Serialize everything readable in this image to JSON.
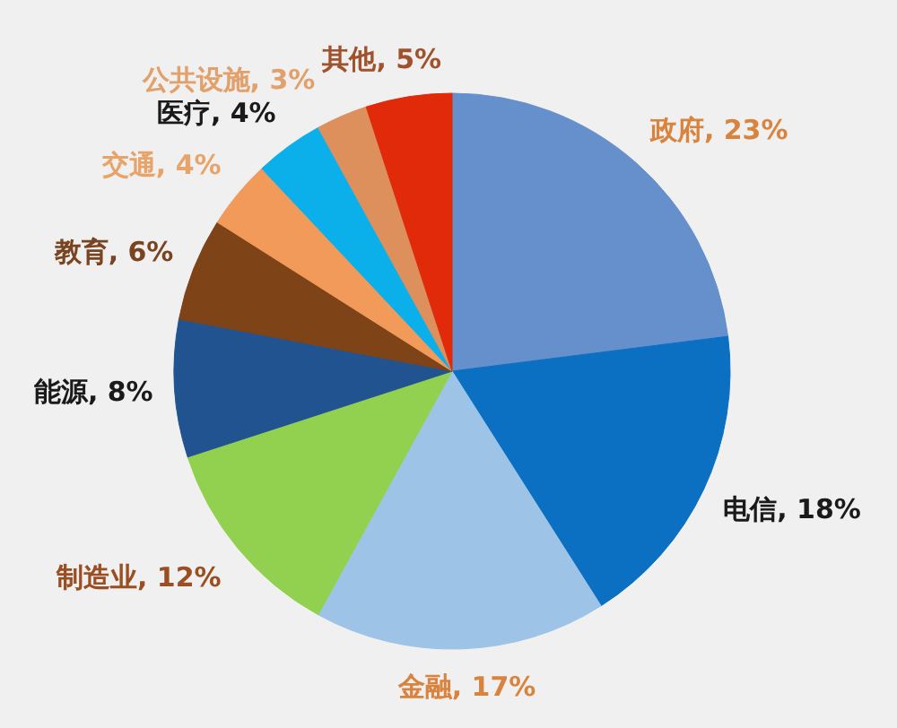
{
  "chart_data": {
    "type": "pie",
    "categories": [
      "政府",
      "电信",
      "金融",
      "制造业",
      "能源",
      "教育",
      "交通",
      "医疗",
      "公共设施",
      "其他"
    ],
    "values": [
      23,
      18,
      17,
      12,
      8,
      6,
      4,
      4,
      3,
      5
    ],
    "colors": [
      "#6590cc",
      "#0b6fc2",
      "#9dc3e6",
      "#92d050",
      "#215391",
      "#7e4317",
      "#f19a5a",
      "#0bb0ea",
      "#dd8f5c",
      "#e02a0a"
    ],
    "value_labels": [
      "23%",
      "18%",
      "17%",
      "12%",
      "8%",
      "6%",
      "4%",
      "4%",
      "3%",
      "5%"
    ]
  }
}
